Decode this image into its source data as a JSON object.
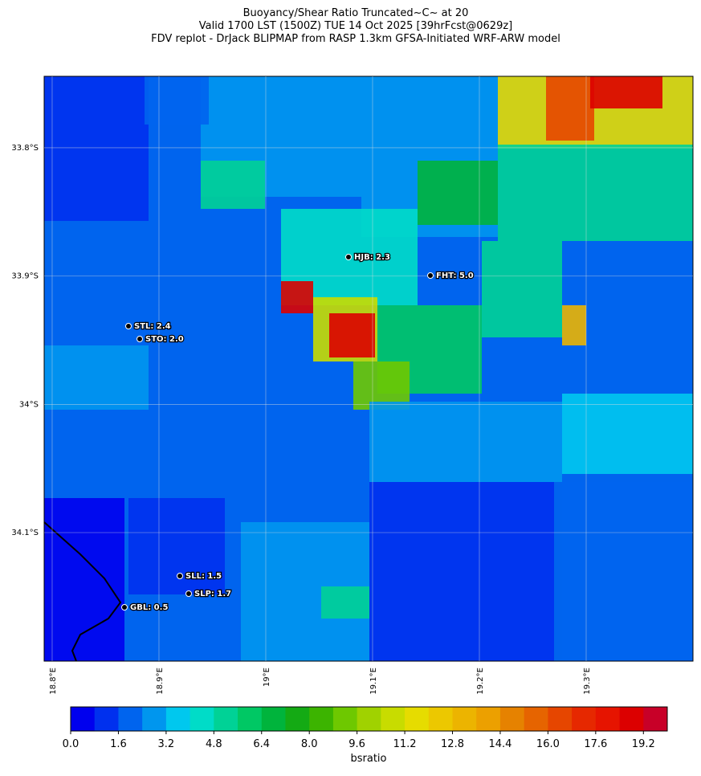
{
  "title_lines": [
    "Buoyancy/Shear Ratio Truncated~C~    at 20",
    "Valid 1700 LST (1500Z) TUE 14 Oct 2025 [39hrFcst@0629z]",
    "FDV replot - DrJack BLIPMAP from RASP 1.3km GFSA-Initiated WRF-ARW model"
  ],
  "map": {
    "lonlim": [
      18.7925,
      19.4
    ],
    "latlim": [
      -33.7443,
      -34.2002
    ],
    "lon_ticks": [
      {
        "value": 18.8,
        "label": "18.8°E"
      },
      {
        "value": 18.9,
        "label": "18.9°E"
      },
      {
        "value": 19.0,
        "label": "19°E"
      },
      {
        "value": 19.1,
        "label": "19.1°E"
      },
      {
        "value": 19.2,
        "label": "19.2°E"
      },
      {
        "value": 19.3,
        "label": "19.3°E"
      }
    ],
    "lat_ticks": [
      {
        "value": -33.8,
        "label": "33.8°S"
      },
      {
        "value": -33.9,
        "label": "33.9°S"
      },
      {
        "value": -34.0,
        "label": "34°S"
      },
      {
        "value": -34.1,
        "label": "34.1°S"
      }
    ],
    "stations": [
      {
        "label": "HJB: 2.3"
      },
      {
        "label": "FHT: 5.0"
      },
      {
        "label": "STL: 2.4"
      },
      {
        "label": "STO: 2.0"
      },
      {
        "label": "SLL: 1.5"
      },
      {
        "label": "SLP: 1.7"
      },
      {
        "label": "GBL: 0.5"
      }
    ]
  },
  "colorbar": {
    "label": "bsratio",
    "lim": [
      0,
      20
    ],
    "colors": [
      "#0000ee",
      "#0030ee",
      "#0064ee",
      "#0096ee",
      "#00c8ee",
      "#00dcc8",
      "#00d296",
      "#00c864",
      "#00b43c",
      "#14aa14",
      "#3cb400",
      "#6ec800",
      "#a0d200",
      "#c8dc00",
      "#e6dc00",
      "#ecc800",
      "#ecb400",
      "#eca000",
      "#e68200",
      "#e66400",
      "#e64600",
      "#e62800",
      "#e61400",
      "#dc0000",
      "#c80028"
    ],
    "ticks": [
      {
        "value": 0,
        "label": "0.0"
      },
      {
        "value": 1.6,
        "label": "1.6"
      },
      {
        "value": 3.2,
        "label": "3.2"
      },
      {
        "value": 4.8,
        "label": "4.8"
      },
      {
        "value": 6.4,
        "label": "6.4"
      },
      {
        "value": 8.0,
        "label": "8.0"
      },
      {
        "value": 9.6,
        "label": "9.6"
      },
      {
        "value": 11.2,
        "label": "11.2"
      },
      {
        "value": 12.8,
        "label": "12.8"
      },
      {
        "value": 14.4,
        "label": "14.4"
      },
      {
        "value": 16.0,
        "label": "16.0"
      },
      {
        "value": 17.6,
        "label": "17.6"
      },
      {
        "value": 19.2,
        "label": "19.2"
      }
    ]
  }
}
